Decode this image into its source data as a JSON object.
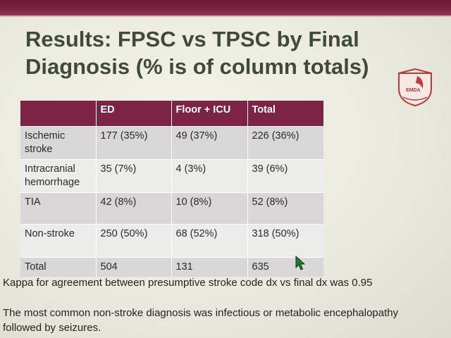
{
  "slide": {
    "title_line1": "Results: FPSC vs TPSC by Final",
    "title_line2": "Diagnosis (% is of column totals)",
    "logo_text": "EMDA",
    "colors": {
      "accent": "#7d2346",
      "band": "#6b1a35",
      "row_alt": "#dad5d6",
      "row": "#ececea"
    }
  },
  "table": {
    "headers": [
      "",
      "ED",
      "Floor + ICU",
      "Total"
    ],
    "rows": [
      {
        "label": "Ischemic stroke",
        "ed": "177 (35%)",
        "floor": "49 (37%)",
        "total": "226 (36%)"
      },
      {
        "label": "Intracranial hemorrhage",
        "ed": "35 (7%)",
        "floor": "4 (3%)",
        "total": "39 (6%)"
      },
      {
        "label": "TIA",
        "ed": "42 (8%)",
        "floor": "10 (8%)",
        "total": "52 (8%)"
      },
      {
        "label": "Non-stroke",
        "ed": "250 (50%)",
        "floor": "68 (52%)",
        "total": "318 (50%)"
      },
      {
        "label": "Total",
        "ed": "504",
        "floor": "131",
        "total": "635"
      }
    ]
  },
  "notes": {
    "kappa": "Kappa for agreement between presumptive stroke code dx vs final dx was 0.95",
    "non_stroke": "The most common non-stroke diagnosis was infectious or metabolic encephalopathy followed by seizures."
  }
}
